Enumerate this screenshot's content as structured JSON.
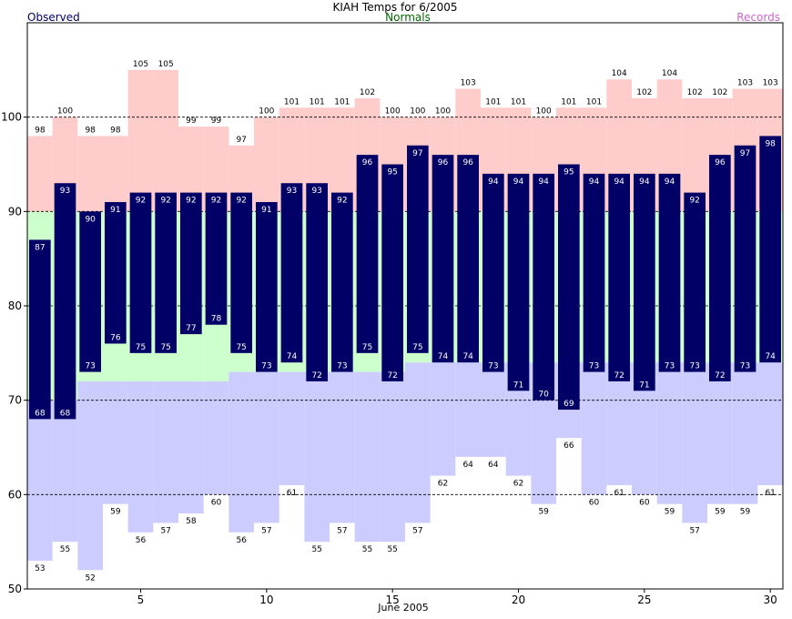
{
  "chart_data": {
    "type": "bar",
    "title": "KIAH Temps for 6/2005",
    "xlabel": "June 2005",
    "ylabel": "",
    "legend": {
      "observed": {
        "label": "Observed",
        "color": "#000066"
      },
      "normals": {
        "label": "Normals",
        "color": "#006600"
      },
      "records": {
        "label": "Records",
        "color": "#cc66cc"
      }
    },
    "colors": {
      "observed": "#000066",
      "record_high": "#ffcccc",
      "normal": "#ccffcc",
      "record_low": "#ccccff",
      "grid": "#000000",
      "label_dark": "#000000",
      "label_light": "#ffffff"
    },
    "x": [
      1,
      2,
      3,
      4,
      5,
      6,
      7,
      8,
      9,
      10,
      11,
      12,
      13,
      14,
      15,
      16,
      17,
      18,
      19,
      20,
      21,
      22,
      23,
      24,
      25,
      26,
      27,
      28,
      29,
      30
    ],
    "xlim": [
      0.5,
      30.5
    ],
    "ylim": [
      50,
      110
    ],
    "xticks": [
      5,
      10,
      15,
      20,
      25,
      30
    ],
    "yticks": [
      50,
      60,
      70,
      80,
      90,
      100
    ],
    "gridlines": [
      60,
      70,
      80,
      90,
      100
    ],
    "series": [
      {
        "name": "Observed High",
        "values": [
          87,
          93,
          90,
          91,
          92,
          92,
          92,
          92,
          92,
          91,
          93,
          93,
          92,
          96,
          95,
          97,
          96,
          96,
          94,
          94,
          94,
          95,
          94,
          94,
          94,
          94,
          92,
          96,
          97,
          98
        ]
      },
      {
        "name": "Observed Low",
        "values": [
          68,
          68,
          73,
          76,
          75,
          75,
          77,
          78,
          75,
          73,
          74,
          72,
          73,
          75,
          72,
          75,
          74,
          74,
          73,
          71,
          70,
          69,
          73,
          72,
          71,
          73,
          73,
          72,
          73,
          74
        ]
      },
      {
        "name": "Record High",
        "values": [
          98,
          100,
          98,
          98,
          105,
          105,
          99,
          99,
          97,
          100,
          101,
          101,
          101,
          102,
          100,
          100,
          100,
          103,
          101,
          101,
          100,
          101,
          101,
          104,
          102,
          104,
          102,
          102,
          103,
          103
        ]
      },
      {
        "name": "Record Low",
        "values": [
          53,
          55,
          52,
          59,
          56,
          57,
          58,
          60,
          56,
          57,
          61,
          55,
          57,
          55,
          55,
          57,
          62,
          64,
          64,
          62,
          59,
          66,
          60,
          61,
          60,
          59,
          57,
          59,
          59,
          61
        ]
      },
      {
        "name": "Normal High",
        "values": [
          90,
          90,
          90,
          90,
          90,
          90,
          90,
          90,
          90,
          90,
          90,
          90,
          90,
          90,
          90,
          90,
          90,
          90,
          90,
          90,
          90,
          90,
          90,
          90,
          90,
          90,
          90,
          90,
          90,
          90
        ]
      },
      {
        "name": "Normal Low",
        "values": [
          70,
          70,
          72,
          72,
          72,
          72,
          72,
          72,
          73,
          73,
          73,
          73,
          73,
          73,
          73,
          74,
          74,
          74,
          74,
          74,
          74,
          74,
          74,
          74,
          74,
          74,
          74,
          74,
          74,
          74
        ]
      }
    ]
  }
}
